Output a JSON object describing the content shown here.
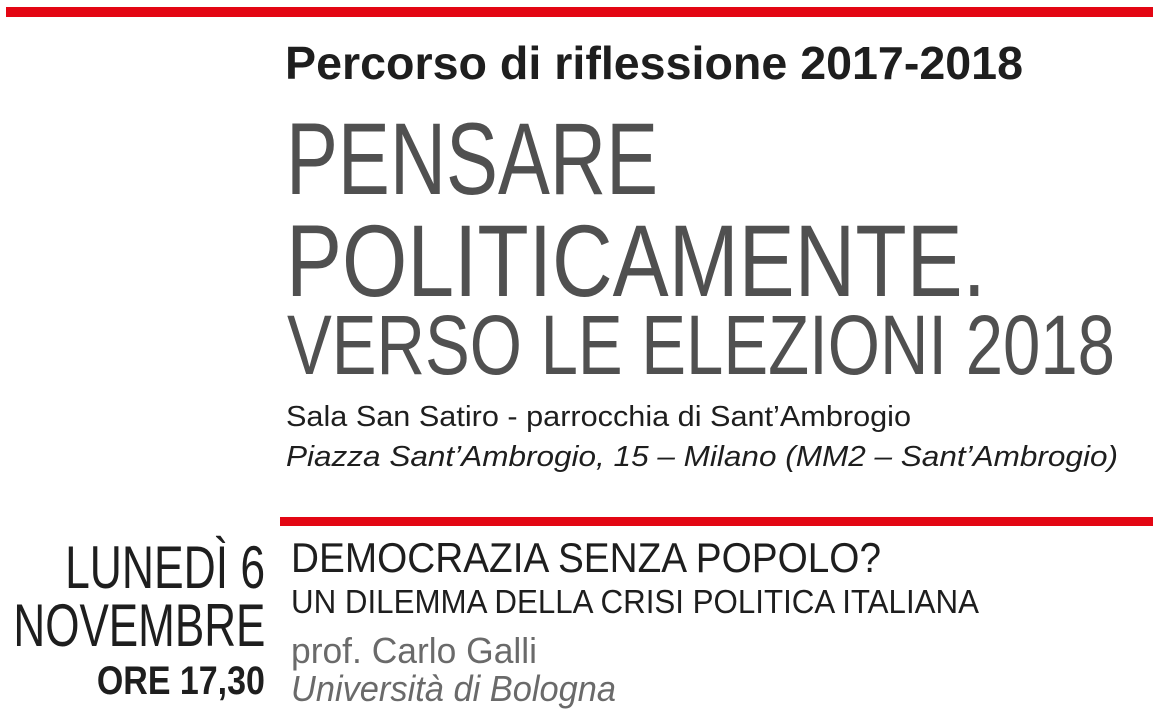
{
  "poster": {
    "accent_color": "#e30613",
    "series_label": "Percorso di riflessione 2017-2018",
    "title_line1": "PENSARE",
    "title_line2": "POLITICAMENTE.",
    "subtitle": "VERSO LE ELEZIONI 2018",
    "venue": "Sala San Satiro - parrocchia di Sant’Ambrogio",
    "address": "Piazza Sant’Ambrogio, 15 – Milano (MM2 – Sant’Ambrogio)"
  },
  "event": {
    "day": "LUNEDÌ 6",
    "month": "NOVEMBRE",
    "time": "ORE 17,30",
    "topic": "DEMOCRAZIA SENZA POPOLO?",
    "topic_sub": "UN DILEMMA DELLA CRISI POLITICA ITALIANA",
    "speaker": "prof. Carlo Galli",
    "affiliation": "Università di Bologna"
  }
}
